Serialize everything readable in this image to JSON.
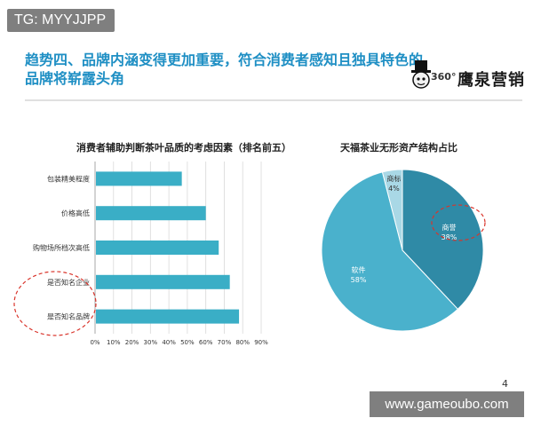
{
  "tag": "TG: MYYJJPP",
  "headline": {
    "line1": "趋势四、品牌内涵变得更加重要，符合消费者感知且独具特色的",
    "line2": "品牌将崭露头角"
  },
  "logo": {
    "prefix": "360°",
    "text": "鹰泉营销"
  },
  "page_number": "4",
  "watermark": "www.gameoubo.com",
  "colors": {
    "headline": "#1f8fc4",
    "bar": "#3aaec6",
    "pie_software": "#4ab1cc",
    "pie_reputation": "#2f8aa6",
    "pie_trademark": "#a9d8e6",
    "callout": "#d9342b"
  },
  "chart_data": [
    {
      "type": "bar",
      "orientation": "horizontal",
      "title": "消费者辅助判断茶叶品质的考虑因素（排名前五）",
      "categories": [
        "包装精美程度",
        "价格高低",
        "购物场所档次高低",
        "是否知名企业",
        "是否知名品牌"
      ],
      "values": [
        47,
        60,
        67,
        73,
        78
      ],
      "unit": "%",
      "xlim": [
        0,
        90
      ],
      "xticks": [
        "0%",
        "10%",
        "20%",
        "30%",
        "40%",
        "50%",
        "60%",
        "70%",
        "80%",
        "90%"
      ],
      "grid": true,
      "highlighted": [
        "是否知名企业",
        "是否知名品牌"
      ]
    },
    {
      "type": "pie",
      "title": "天福茶业无形资产结构占比",
      "slices": [
        {
          "label": "商标",
          "value": 4,
          "display": "4%"
        },
        {
          "label": "商誉",
          "value": 38,
          "display": "38%"
        },
        {
          "label": "软件",
          "value": 58,
          "display": "58%"
        }
      ],
      "highlighted": [
        "商誉"
      ]
    }
  ]
}
